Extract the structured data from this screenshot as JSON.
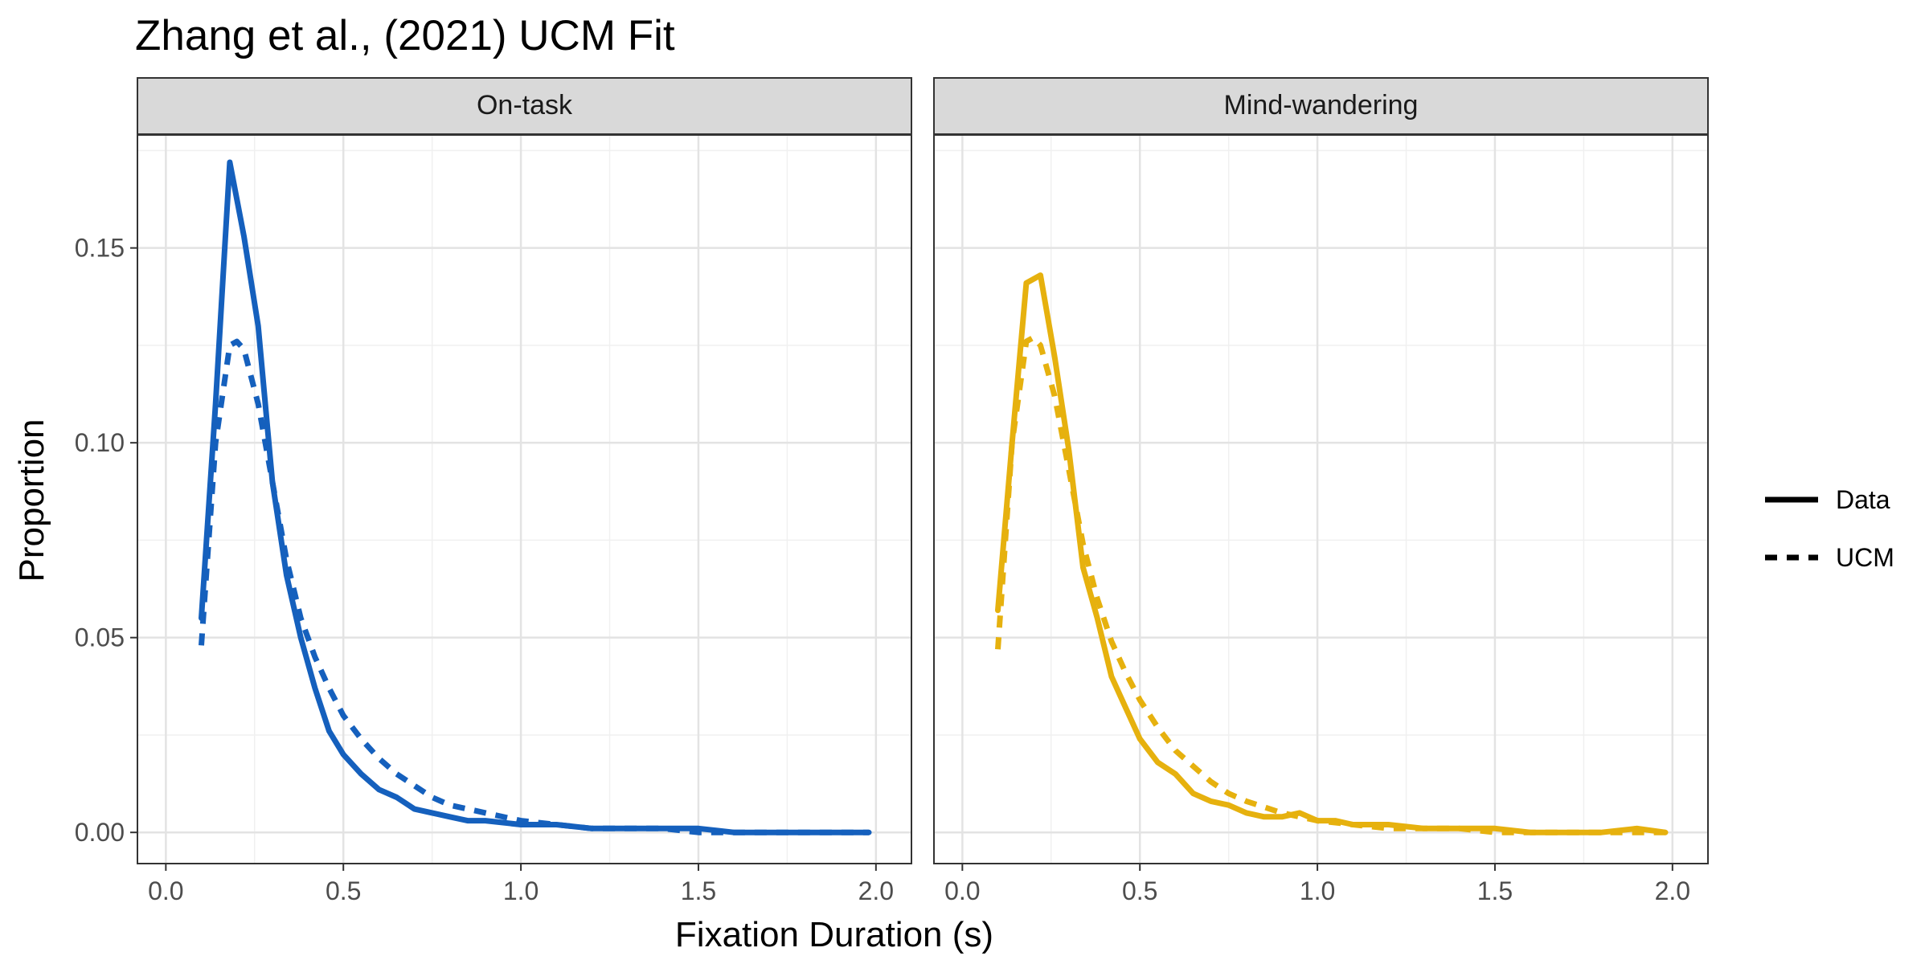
{
  "chart_data": {
    "type": "line",
    "title": "Zhang et al., (2021) UCM Fit",
    "xlabel": "Fixation Duration (s)",
    "ylabel": "Proportion",
    "xlim": [
      -0.08,
      2.1
    ],
    "ylim": [
      -0.008,
      0.179
    ],
    "x_ticks": [
      0.0,
      0.5,
      1.0,
      1.5,
      2.0
    ],
    "x_tick_labels": [
      "0.0",
      "0.5",
      "1.0",
      "1.5",
      "2.0"
    ],
    "y_ticks": [
      0.0,
      0.05,
      0.1,
      0.15
    ],
    "y_tick_labels": [
      "0.00",
      "0.05",
      "0.10",
      "0.15"
    ],
    "grid": true,
    "legend_position": "right",
    "legend": [
      {
        "label": "Data",
        "linetype": "solid"
      },
      {
        "label": "UCM",
        "linetype": "dashed"
      }
    ],
    "panels": [
      {
        "label": "On-task",
        "color": "#1560bd",
        "series": [
          {
            "name": "Data",
            "linetype": "solid",
            "x": [
              0.1,
              0.14,
              0.18,
              0.22,
              0.26,
              0.3,
              0.34,
              0.38,
              0.42,
              0.46,
              0.5,
              0.55,
              0.6,
              0.65,
              0.7,
              0.75,
              0.8,
              0.85,
              0.9,
              1.0,
              1.1,
              1.2,
              1.3,
              1.4,
              1.5,
              1.6,
              1.7,
              1.8,
              1.9,
              1.98
            ],
            "y": [
              0.055,
              0.11,
              0.172,
              0.153,
              0.13,
              0.09,
              0.066,
              0.05,
              0.037,
              0.026,
              0.02,
              0.015,
              0.011,
              0.009,
              0.006,
              0.005,
              0.004,
              0.003,
              0.003,
              0.002,
              0.002,
              0.001,
              0.001,
              0.001,
              0.001,
              0.0,
              0.0,
              0.0,
              0.0,
              0.0
            ]
          },
          {
            "name": "UCM",
            "linetype": "dashed",
            "x": [
              0.1,
              0.14,
              0.18,
              0.2,
              0.22,
              0.26,
              0.3,
              0.34,
              0.38,
              0.42,
              0.46,
              0.5,
              0.55,
              0.6,
              0.65,
              0.7,
              0.75,
              0.8,
              0.9,
              1.0,
              1.1,
              1.2,
              1.3,
              1.4,
              1.5,
              1.6,
              1.7,
              1.8,
              1.9,
              1.98
            ],
            "y": [
              0.048,
              0.1,
              0.125,
              0.126,
              0.124,
              0.11,
              0.09,
              0.07,
              0.055,
              0.045,
              0.037,
              0.03,
              0.024,
              0.019,
              0.015,
              0.012,
              0.009,
              0.007,
              0.005,
              0.003,
              0.002,
              0.001,
              0.001,
              0.001,
              0.0,
              0.0,
              0.0,
              0.0,
              0.0,
              0.0
            ]
          }
        ]
      },
      {
        "label": "Mind-wandering",
        "color": "#e6b10e",
        "series": [
          {
            "name": "Data",
            "linetype": "solid",
            "x": [
              0.1,
              0.14,
              0.18,
              0.22,
              0.26,
              0.3,
              0.34,
              0.38,
              0.42,
              0.46,
              0.5,
              0.55,
              0.6,
              0.65,
              0.7,
              0.75,
              0.8,
              0.85,
              0.9,
              0.95,
              1.0,
              1.05,
              1.1,
              1.2,
              1.3,
              1.4,
              1.5,
              1.6,
              1.7,
              1.8,
              1.9,
              1.98
            ],
            "y": [
              0.057,
              0.1,
              0.141,
              0.143,
              0.122,
              0.098,
              0.068,
              0.055,
              0.04,
              0.032,
              0.024,
              0.018,
              0.015,
              0.01,
              0.008,
              0.007,
              0.005,
              0.004,
              0.004,
              0.005,
              0.003,
              0.003,
              0.002,
              0.002,
              0.001,
              0.001,
              0.001,
              0.0,
              0.0,
              0.0,
              0.001,
              0.0
            ]
          },
          {
            "name": "UCM",
            "linetype": "dashed",
            "x": [
              0.1,
              0.14,
              0.18,
              0.2,
              0.22,
              0.26,
              0.3,
              0.34,
              0.38,
              0.42,
              0.46,
              0.5,
              0.55,
              0.6,
              0.65,
              0.7,
              0.75,
              0.8,
              0.9,
              1.0,
              1.1,
              1.2,
              1.3,
              1.4,
              1.5,
              1.6,
              1.7,
              1.8,
              1.9,
              1.98
            ],
            "y": [
              0.047,
              0.1,
              0.126,
              0.127,
              0.125,
              0.112,
              0.093,
              0.074,
              0.06,
              0.049,
              0.041,
              0.034,
              0.027,
              0.021,
              0.017,
              0.013,
              0.01,
              0.008,
              0.005,
              0.003,
              0.002,
              0.001,
              0.001,
              0.001,
              0.0,
              0.0,
              0.0,
              0.0,
              0.0,
              0.0
            ]
          }
        ]
      }
    ]
  }
}
